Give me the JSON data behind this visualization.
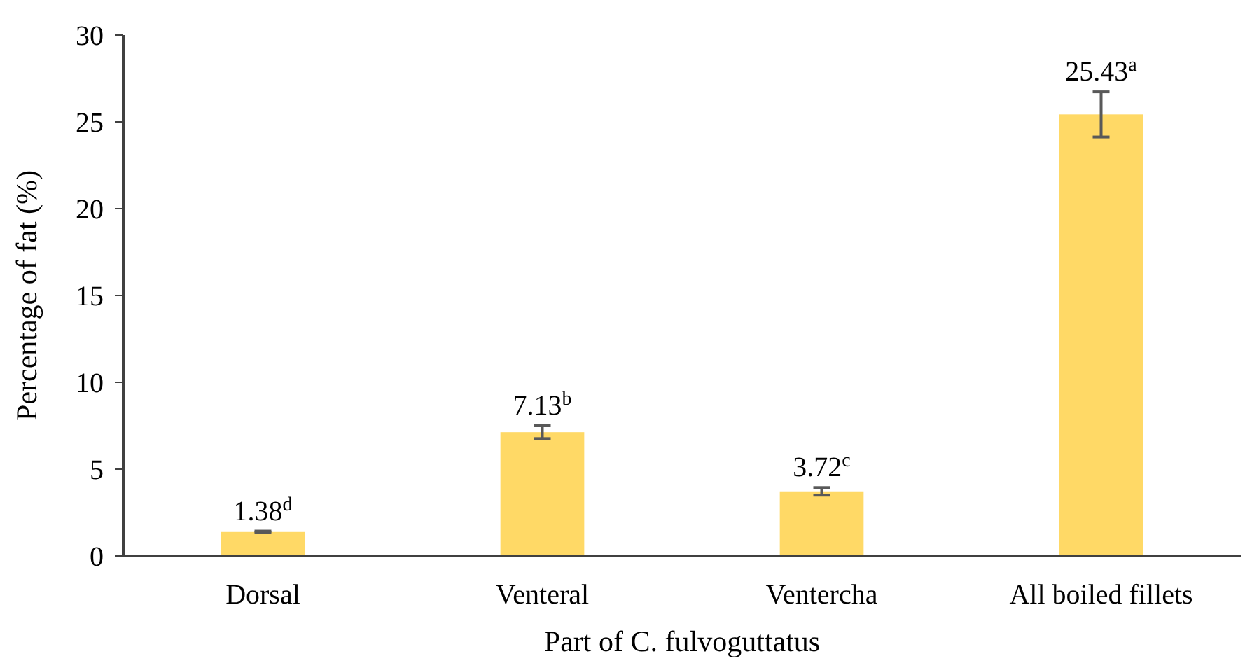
{
  "chart_data": {
    "type": "bar",
    "xlabel": "Part of C. fulvoguttatus",
    "ylabel": "Percentage of fat (%)",
    "categories": [
      "Dorsal",
      "Venteral",
      "Ventercha",
      "All boiled fillets"
    ],
    "values": [
      1.38,
      7.13,
      3.72,
      25.43
    ],
    "errors": [
      0.05,
      0.37,
      0.22,
      1.3
    ],
    "value_labels": [
      "1.38$^{d}$",
      "7.13$^{b}$",
      "3.72$^{c}$",
      "25.43$^{a}$"
    ],
    "color": "#ffd966",
    "ylim": [
      0,
      30
    ],
    "yticks": [
      0,
      5,
      10,
      15,
      20,
      25,
      30
    ],
    "grid": false
  }
}
